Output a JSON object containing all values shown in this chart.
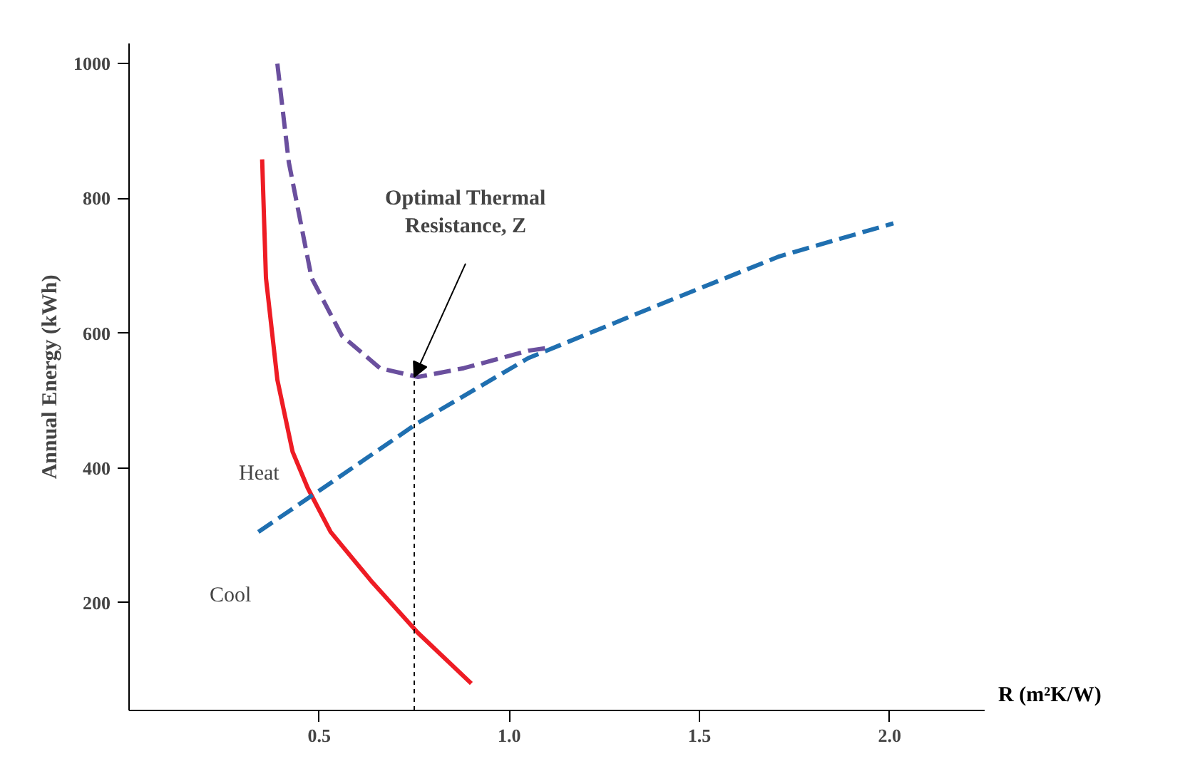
{
  "chart_data": {
    "type": "line",
    "xlabel": "R (m²K/W)",
    "ylabel": "Annual Energy (kWh)",
    "xlim": [
      0,
      2.25
    ],
    "ylim": [
      40,
      1030
    ],
    "xticks": [
      0.5,
      {
        "value": 1,
        "label": "1.0"
      },
      1.5,
      {
        "value": 2,
        "label": "2.0"
      }
    ],
    "yticks": [
      200,
      400,
      600,
      800,
      1000
    ],
    "grid": false,
    "marker": "none",
    "series": [
      {
        "name": "Heat",
        "color": "#ee1c24",
        "line_style": "solid",
        "x": [
          0.35,
          0.36,
          0.39,
          0.43,
          0.47,
          0.53,
          0.64,
          0.76,
          0.9
        ],
        "values": [
          858,
          682,
          531,
          424,
          370,
          305,
          230,
          155,
          80
        ]
      },
      {
        "name": "Cool",
        "color": "#1f6fb0",
        "line_style": "dashed",
        "x": [
          0.34,
          0.51,
          0.76,
          1.05,
          1.38,
          1.71,
          2.01
        ],
        "values": [
          305,
          370,
          467,
          563,
          639,
          714,
          763
        ]
      },
      {
        "color": "#6a4f9e",
        "line_style": "dashed",
        "x": [
          0.39,
          0.42,
          0.48,
          0.56,
          0.66,
          0.76,
          0.88,
          1.05,
          1.1
        ],
        "values": [
          1000,
          854,
          682,
          596,
          548,
          535,
          548,
          574,
          578
        ]
      },
      {
        "color": "#000000",
        "line_style": "dotted",
        "x": [
          0.75,
          0.75
        ],
        "values": [
          40,
          535
        ]
      }
    ],
    "annotations": [
      {
        "text": "Optimal Thermal\nResistance, Z",
        "x": 0.75,
        "y": 535
      }
    ]
  }
}
